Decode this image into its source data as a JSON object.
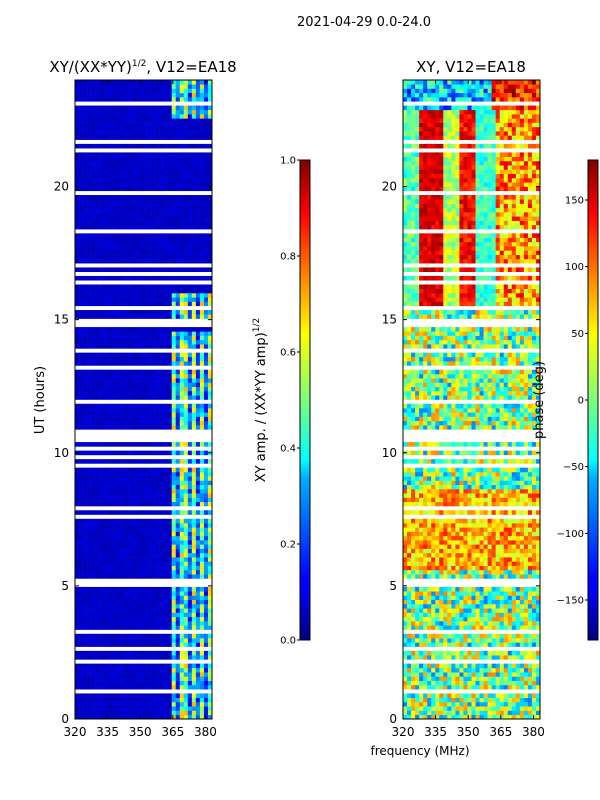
{
  "figure_title": "2021-04-29 0.0-24.0",
  "chart_data": [
    {
      "type": "heatmap",
      "title": "XY/(XX*YY)^1/2, V12=EA18",
      "title_base": "XY/(XX*YY)",
      "title_sup": "1/2",
      "title_suffix": ", V12=EA18",
      "xlabel": "",
      "ylabel": "UT (hours)",
      "xlim": [
        320,
        383
      ],
      "ylim": [
        0,
        24
      ],
      "xticks": [
        "320",
        "335",
        "350",
        "365",
        "380"
      ],
      "yticks": [
        "0",
        "5",
        "10",
        "15",
        "20"
      ],
      "colorbar": {
        "label": "XY amp. / (XX*YY amp)^1/2",
        "label_base": "XY amp. / (XX*YY amp)",
        "label_sup": "1/2",
        "range": [
          0.0,
          1.0
        ],
        "ticks": [
          "0.0",
          "0.2",
          "0.4",
          "0.6",
          "0.8",
          "1.0"
        ]
      },
      "description_values": {
        "background_level": 0.05,
        "band_364_382_level": 0.45
      }
    },
    {
      "type": "heatmap",
      "title": "XY, V12=EA18",
      "xlabel": "frequency (MHz)",
      "ylabel": "",
      "xlim": [
        320,
        383
      ],
      "ylim": [
        0,
        24
      ],
      "xticks": [
        "320",
        "335",
        "350",
        "365",
        "380"
      ],
      "yticks": [
        "0",
        "5",
        "10",
        "15",
        "20"
      ],
      "colorbar": {
        "label": "phase (deg)",
        "range": [
          -180,
          180
        ],
        "ticks": [
          "150",
          "100",
          "50",
          "0",
          "−50",
          "−100",
          "−150"
        ]
      }
    }
  ]
}
